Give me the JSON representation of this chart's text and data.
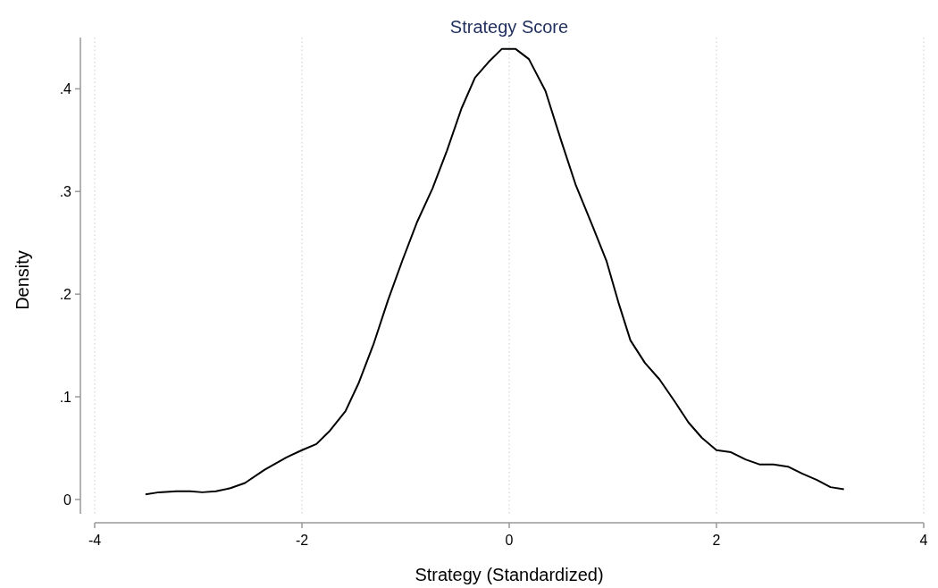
{
  "chart_data": {
    "type": "line",
    "title": "Strategy Score",
    "xlabel": "Strategy (Standardized)",
    "ylabel": "Density",
    "xlim": [
      -4,
      4
    ],
    "xticks": [
      -4,
      -2,
      0,
      2,
      4
    ],
    "ylim": [
      -0.014,
      0.45
    ],
    "yticks": [
      0,
      {
        "value": 0.1,
        "label": ".1"
      },
      {
        "value": 0.2,
        "label": ".2"
      },
      {
        "value": 0.3,
        "label": ".3"
      },
      {
        "value": 0.4,
        "label": ".4"
      }
    ],
    "grid": "x",
    "marker": "none",
    "line_style": "solid",
    "series": [
      {
        "color": "#000000",
        "x": [
          -3.51,
          -3.38,
          -3.21,
          -3.08,
          -2.96,
          -2.83,
          -2.69,
          -2.55,
          -2.36,
          -2.15,
          -2.0,
          -1.86,
          -1.73,
          -1.58,
          -1.45,
          -1.31,
          -1.17,
          -1.03,
          -0.89,
          -0.74,
          -0.6,
          -0.46,
          -0.33,
          -0.2,
          -0.07,
          0.06,
          0.19,
          0.35,
          0.5,
          0.64,
          0.79,
          0.94,
          1.06,
          1.17,
          1.31,
          1.45,
          1.6,
          1.73,
          1.86,
          2.0,
          2.14,
          2.28,
          2.42,
          2.55,
          2.69,
          2.83,
          2.97,
          3.1,
          3.23
        ],
        "values": [
          0.005,
          0.007,
          0.008,
          0.008,
          0.007,
          0.008,
          0.011,
          0.016,
          0.029,
          0.041,
          0.048,
          0.054,
          0.067,
          0.086,
          0.114,
          0.151,
          0.194,
          0.233,
          0.27,
          0.303,
          0.34,
          0.381,
          0.411,
          0.426,
          0.439,
          0.439,
          0.429,
          0.398,
          0.35,
          0.307,
          0.27,
          0.232,
          0.19,
          0.155,
          0.133,
          0.117,
          0.095,
          0.075,
          0.06,
          0.048,
          0.046,
          0.039,
          0.034,
          0.034,
          0.032,
          0.025,
          0.019,
          0.012,
          0.01
        ]
      }
    ]
  }
}
